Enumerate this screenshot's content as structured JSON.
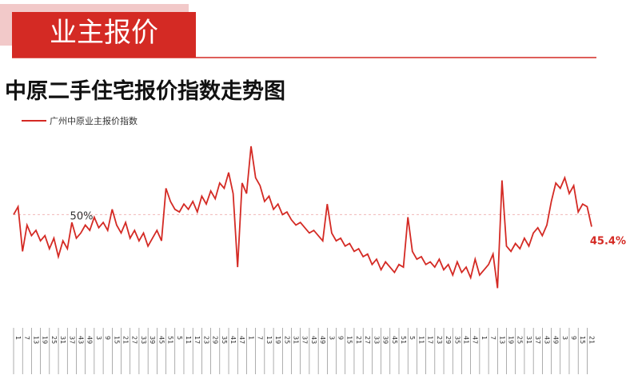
{
  "header": {
    "title": "业主报价"
  },
  "chart_data": {
    "type": "line",
    "title": "中原二手住宅报价指数走势图",
    "reference": {
      "value": 50,
      "label": "50%"
    },
    "end_label": "45.4%",
    "ylim": [
      13,
      86
    ],
    "legend": "top-left",
    "categories": [
      "1",
      null,
      "7",
      null,
      "13",
      null,
      "19",
      null,
      "25",
      null,
      "31",
      null,
      "37",
      null,
      "43",
      null,
      "49",
      null,
      "3",
      null,
      "9",
      null,
      "15",
      null,
      "21",
      null,
      "27",
      null,
      "33",
      null,
      "39",
      null,
      "45",
      null,
      "51",
      null,
      "5",
      null,
      "11",
      null,
      "17",
      null,
      "23",
      null,
      "29",
      null,
      "35",
      null,
      "41",
      null,
      "47",
      null,
      "1",
      null,
      "7",
      null,
      "13",
      null,
      "19",
      null,
      "25",
      null,
      "31",
      null,
      "37",
      null,
      "43",
      null,
      "49",
      null,
      "3",
      null,
      "9",
      null,
      "15",
      null,
      "21",
      null,
      "27",
      null,
      "33",
      null,
      "39",
      null,
      "45",
      null,
      "51",
      null,
      "5",
      null,
      "11",
      null,
      "17",
      null,
      "23",
      null,
      "29",
      null,
      "35",
      null,
      "41",
      null,
      "47",
      null,
      "1",
      null,
      "7",
      null,
      "13",
      null,
      "19",
      null,
      "25",
      null,
      "31",
      null,
      "37",
      null,
      "43",
      null,
      "49",
      null,
      "3",
      null,
      "9",
      null,
      "15",
      null,
      "21",
      null
    ],
    "series": [
      {
        "name": "广州中原业主报价指数",
        "color": "#d42a24",
        "values": [
          50,
          53,
          36,
          46,
          42,
          44,
          40,
          42,
          37,
          41,
          34,
          40,
          37,
          47,
          41,
          43,
          46,
          44,
          49,
          45,
          47,
          44,
          52,
          46,
          43,
          47,
          41,
          44,
          40,
          43,
          38,
          41,
          44,
          40,
          60,
          55,
          52,
          51,
          54,
          52,
          55,
          51,
          57,
          54,
          59,
          56,
          62,
          60,
          66,
          58,
          30,
          62,
          58,
          76,
          64,
          61,
          55,
          57,
          52,
          54,
          50,
          51,
          48,
          46,
          47,
          45,
          43,
          44,
          42,
          40,
          54,
          43,
          40,
          41,
          38,
          39,
          36,
          37,
          34,
          35,
          31,
          33,
          29,
          32,
          30,
          28,
          31,
          30,
          49,
          36,
          33,
          34,
          31,
          32,
          30,
          33,
          29,
          31,
          27,
          32,
          28,
          30,
          26,
          33,
          27,
          29,
          31,
          35,
          22,
          63,
          38,
          36,
          39,
          37,
          41,
          38,
          43,
          45,
          42,
          46,
          55,
          62,
          60,
          64,
          58,
          61,
          51,
          54,
          53,
          45.4
        ]
      }
    ]
  }
}
